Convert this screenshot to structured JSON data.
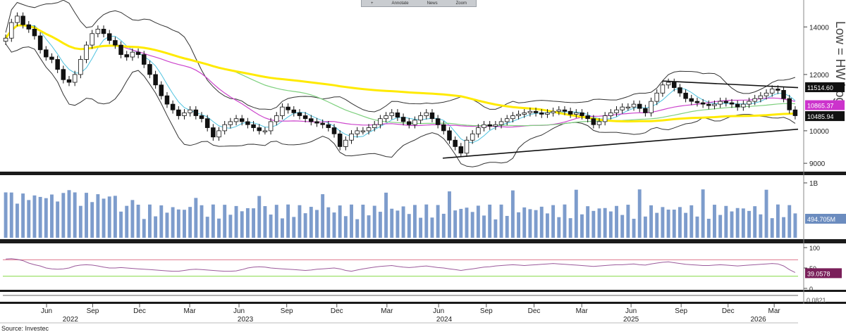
{
  "toolbar": {
    "items": [
      "+",
      "Annotate",
      "News",
      "Zoom"
    ]
  },
  "chart_data": [
    {
      "type": "candlestick",
      "panel": "price",
      "y_scale": "log",
      "ylim": [
        8800,
        15000
      ],
      "ytick_labels": [
        {
          "v": 14000,
          "label": "14000"
        },
        {
          "v": 12000,
          "label": "12000"
        },
        {
          "v": 10000,
          "label": "10000"
        },
        {
          "v": 9000,
          "label": "9000"
        }
      ],
      "axis_title": "Low = HW Log",
      "last_value_tags": [
        {
          "v": 11514.6,
          "label": "11514.60",
          "color": "#111111"
        },
        {
          "v": 10865.37,
          "label": "10865.37",
          "color": "#cc33cc"
        },
        {
          "v": 10485.94,
          "label": "10485.94",
          "color": "#111111"
        }
      ],
      "close_series": [
        13500,
        14200,
        14500,
        14100,
        13900,
        13600,
        13000,
        12700,
        12600,
        12200,
        11800,
        11700,
        12000,
        12600,
        13200,
        13700,
        13900,
        13700,
        13400,
        13200,
        12800,
        12700,
        12900,
        12800,
        12400,
        12000,
        11600,
        11200,
        10900,
        10700,
        10500,
        10600,
        10700,
        10500,
        10400,
        10100,
        9800,
        10000,
        10200,
        10300,
        10400,
        10300,
        10200,
        10100,
        10000,
        10000,
        10300,
        10500,
        10800,
        10700,
        10600,
        10500,
        10400,
        10300,
        10250,
        10200,
        10100,
        9900,
        9500,
        9700,
        9900,
        10000,
        10000,
        10100,
        10200,
        10400,
        10500,
        10600,
        10450,
        10300,
        10200,
        10350,
        10500,
        10600,
        10400,
        10200,
        10000,
        9700,
        9500,
        9300,
        9700,
        9900,
        10100,
        10200,
        10150,
        10200,
        10300,
        10400,
        10500,
        10550,
        10600,
        10650,
        10600,
        10550,
        10600,
        10650,
        10700,
        10650,
        10550,
        10600,
        10500,
        10400,
        10200,
        10300,
        10500,
        10600,
        10700,
        10800,
        10800,
        10900,
        10750,
        10600,
        11000,
        11300,
        11600,
        11700,
        11500,
        11300,
        11100,
        11000,
        10950,
        10900,
        10850,
        10900,
        11000,
        10950,
        10900,
        10800,
        10900,
        11000,
        11100,
        11200,
        11300,
        11450,
        11400,
        11100,
        10700,
        10500
      ],
      "start_date": "2022-04",
      "bollinger": {
        "color": "#333333"
      },
      "moving_averages": [
        {
          "color": "#4fc3e0"
        },
        {
          "color": "#cc44cc"
        },
        {
          "color": "#7ed07e"
        },
        {
          "color": "#ffea00"
        }
      ],
      "trendlines": [
        {
          "from": [
            "2025-07",
            11750
          ],
          "to": [
            "2026-03",
            11500
          ]
        },
        {
          "from": [
            "2024-06",
            9150
          ],
          "to": [
            "2026-03",
            10050
          ]
        }
      ]
    },
    {
      "type": "bar",
      "panel": "volume",
      "ytick_labels": [
        {
          "v": 1000,
          "label": "1B"
        }
      ],
      "last_value_tag": {
        "label": "494.705M",
        "color": "#6b8cbf"
      },
      "bar_color": "#7d9ccc"
    },
    {
      "type": "line",
      "panel": "rsi",
      "ylim": [
        0,
        100
      ],
      "ytick_labels": [
        {
          "v": 100,
          "label": "100"
        },
        {
          "v": 50,
          "label": "50"
        },
        {
          "v": 0,
          "label": "0"
        }
      ],
      "upper_line": {
        "v": 70,
        "color": "#e58fa0"
      },
      "lower_line": {
        "v": 30,
        "color": "#9de06a"
      },
      "line_color": "#9b5a9b",
      "last_value_tag": {
        "label": "39.0578",
        "color": "#7a1f5a"
      },
      "series": [
        72,
        73,
        71,
        68,
        62,
        58,
        55,
        50,
        48,
        47,
        48,
        50,
        55,
        57,
        58,
        57,
        55,
        52,
        50,
        50,
        51,
        50,
        49,
        48,
        47,
        46,
        45,
        44,
        43,
        42,
        42,
        44,
        46,
        47,
        46,
        45,
        44,
        43,
        42,
        42,
        43,
        46,
        50,
        52,
        53,
        52,
        50,
        49,
        48,
        47,
        46,
        45,
        44,
        45,
        47,
        48,
        49,
        50,
        48,
        44,
        42,
        45,
        48,
        50,
        52,
        54,
        55,
        56,
        54,
        52,
        51,
        52,
        54,
        55,
        53,
        51,
        50,
        48,
        46,
        44,
        46,
        48,
        50,
        52,
        53,
        55,
        56,
        57,
        58,
        57,
        56,
        57,
        58,
        59,
        60,
        61,
        60,
        59,
        58,
        57,
        56,
        55,
        54,
        55,
        56,
        57,
        58,
        58,
        59,
        60,
        58,
        57,
        60,
        62,
        64,
        65,
        63,
        61,
        59,
        58,
        57,
        56,
        56,
        57,
        58,
        57,
        56,
        55,
        56,
        57,
        58,
        59,
        60,
        61,
        60,
        55,
        46,
        39
      ]
    },
    {
      "type": "indicator",
      "panel": "bottom",
      "last_value_tag": {
        "label": "0.0821",
        "color": "#555555"
      }
    }
  ],
  "xaxis": {
    "months": [
      {
        "label": "Jun",
        "pos": 0.055
      },
      {
        "label": "Sep",
        "pos": 0.113
      },
      {
        "label": "Dec",
        "pos": 0.172
      },
      {
        "label": "Mar",
        "pos": 0.235
      },
      {
        "label": "Jun",
        "pos": 0.297
      },
      {
        "label": "Sep",
        "pos": 0.357
      },
      {
        "label": "Dec",
        "pos": 0.42
      },
      {
        "label": "Mar",
        "pos": 0.483
      },
      {
        "label": "Jun",
        "pos": 0.548
      },
      {
        "label": "Sep",
        "pos": 0.608
      },
      {
        "label": "Dec",
        "pos": 0.668
      },
      {
        "label": "Mar",
        "pos": 0.728
      },
      {
        "label": "Jun",
        "pos": 0.79
      },
      {
        "label": "Sep",
        "pos": 0.853
      },
      {
        "label": "Dec",
        "pos": 0.912
      },
      {
        "label": "Mar",
        "pos": 0.97
      }
    ],
    "years": [
      {
        "label": "2022",
        "pos": 0.085
      },
      {
        "label": "2023",
        "pos": 0.305
      },
      {
        "label": "2024",
        "pos": 0.555
      },
      {
        "label": "2025",
        "pos": 0.79
      },
      {
        "label": "2026",
        "pos": 0.95
      }
    ],
    "source_label": "Source: Investec"
  }
}
